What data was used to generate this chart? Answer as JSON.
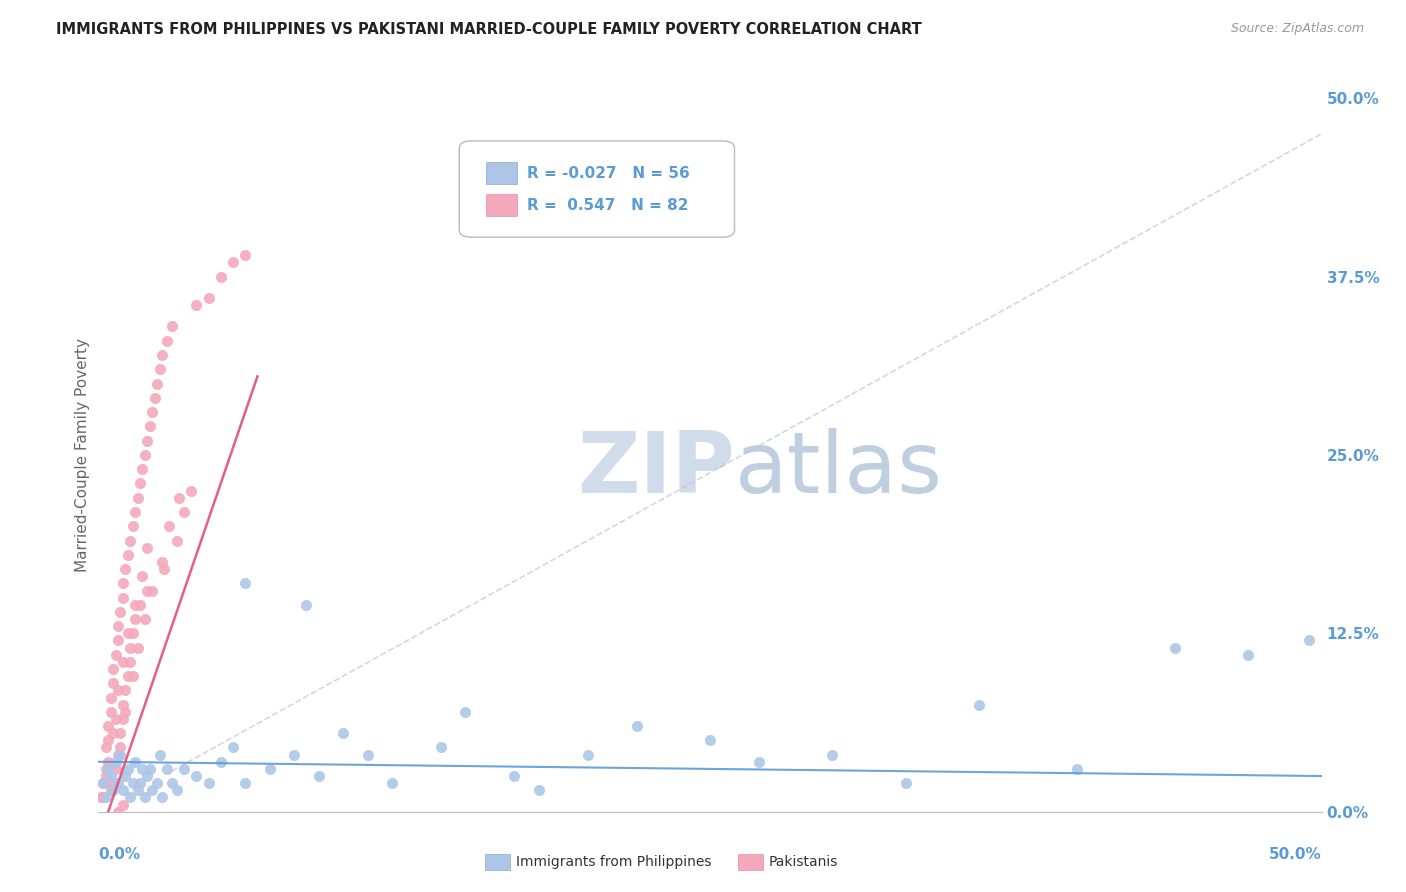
{
  "title": "IMMIGRANTS FROM PHILIPPINES VS PAKISTANI MARRIED-COUPLE FAMILY POVERTY CORRELATION CHART",
  "source": "Source: ZipAtlas.com",
  "ylabel": "Married-Couple Family Poverty",
  "ytick_vals": [
    0.0,
    12.5,
    25.0,
    37.5,
    50.0
  ],
  "xlim": [
    0.0,
    50.0
  ],
  "ylim": [
    0.0,
    50.0
  ],
  "color_blue": "#adc6e8",
  "color_pink": "#f4a8bc",
  "color_blue_text": "#5b9bd5",
  "trendline_blue_color": "#5b9bd5",
  "trendline_pink_color": "#e05070",
  "trendline_gray_color": "#c0c8d0",
  "philippines_x": [
    0.2,
    0.3,
    0.4,
    0.5,
    0.6,
    0.7,
    0.8,
    0.9,
    1.0,
    1.1,
    1.2,
    1.3,
    1.4,
    1.5,
    1.6,
    1.7,
    1.8,
    1.9,
    2.0,
    2.1,
    2.2,
    2.4,
    2.5,
    2.6,
    2.8,
    3.0,
    3.2,
    3.5,
    4.0,
    4.5,
    5.0,
    5.5,
    6.0,
    7.0,
    8.0,
    9.0,
    10.0,
    11.0,
    12.0,
    14.0,
    15.0,
    17.0,
    18.0,
    20.0,
    22.0,
    25.0,
    27.0,
    30.0,
    33.0,
    36.0,
    40.0,
    44.0,
    47.0,
    49.5,
    6.0,
    8.5
  ],
  "philippines_y": [
    2.0,
    1.0,
    3.0,
    2.5,
    1.5,
    3.5,
    2.0,
    4.0,
    1.5,
    2.5,
    3.0,
    1.0,
    2.0,
    3.5,
    1.5,
    2.0,
    3.0,
    1.0,
    2.5,
    3.0,
    1.5,
    2.0,
    4.0,
    1.0,
    3.0,
    2.0,
    1.5,
    3.0,
    2.5,
    2.0,
    3.5,
    4.5,
    2.0,
    3.0,
    4.0,
    2.5,
    5.5,
    4.0,
    2.0,
    4.5,
    7.0,
    2.5,
    1.5,
    4.0,
    6.0,
    5.0,
    3.5,
    4.0,
    2.0,
    7.5,
    3.0,
    11.5,
    11.0,
    12.0,
    16.0,
    14.5
  ],
  "pakistani_x": [
    0.1,
    0.2,
    0.3,
    0.3,
    0.4,
    0.4,
    0.5,
    0.5,
    0.5,
    0.6,
    0.6,
    0.7,
    0.7,
    0.8,
    0.8,
    0.8,
    0.9,
    0.9,
    1.0,
    1.0,
    1.0,
    1.0,
    1.1,
    1.1,
    1.2,
    1.2,
    1.3,
    1.3,
    1.3,
    1.4,
    1.4,
    1.5,
    1.5,
    1.6,
    1.7,
    1.7,
    1.8,
    1.9,
    2.0,
    2.0,
    2.1,
    2.2,
    2.3,
    2.4,
    2.5,
    2.6,
    2.7,
    2.8,
    3.0,
    3.2,
    3.5,
    3.8,
    4.0,
    4.5,
    5.0,
    5.5,
    6.0,
    0.3,
    0.4,
    0.6,
    0.7,
    0.8,
    1.0,
    1.2,
    1.5,
    1.8,
    2.0,
    0.2,
    0.5,
    0.9,
    1.1,
    1.4,
    1.6,
    1.9,
    2.2,
    2.6,
    2.9,
    3.3,
    0.4,
    0.6,
    0.8,
    1.0
  ],
  "pakistani_y": [
    1.0,
    2.0,
    3.0,
    4.5,
    5.0,
    6.0,
    7.0,
    8.0,
    1.5,
    9.0,
    10.0,
    11.0,
    3.0,
    12.0,
    13.0,
    4.0,
    14.0,
    5.5,
    15.0,
    16.0,
    6.5,
    7.5,
    17.0,
    8.5,
    18.0,
    9.5,
    19.0,
    10.5,
    11.5,
    20.0,
    12.5,
    21.0,
    13.5,
    22.0,
    23.0,
    14.5,
    24.0,
    25.0,
    26.0,
    15.5,
    27.0,
    28.0,
    29.0,
    30.0,
    31.0,
    32.0,
    17.0,
    33.0,
    34.0,
    19.0,
    21.0,
    22.5,
    35.5,
    36.0,
    37.5,
    38.5,
    39.0,
    2.5,
    3.5,
    5.5,
    6.5,
    8.5,
    10.5,
    12.5,
    14.5,
    16.5,
    18.5,
    1.0,
    2.0,
    4.5,
    7.0,
    9.5,
    11.5,
    13.5,
    15.5,
    17.5,
    20.0,
    22.0,
    -0.5,
    -1.0,
    0.0,
    0.5
  ]
}
